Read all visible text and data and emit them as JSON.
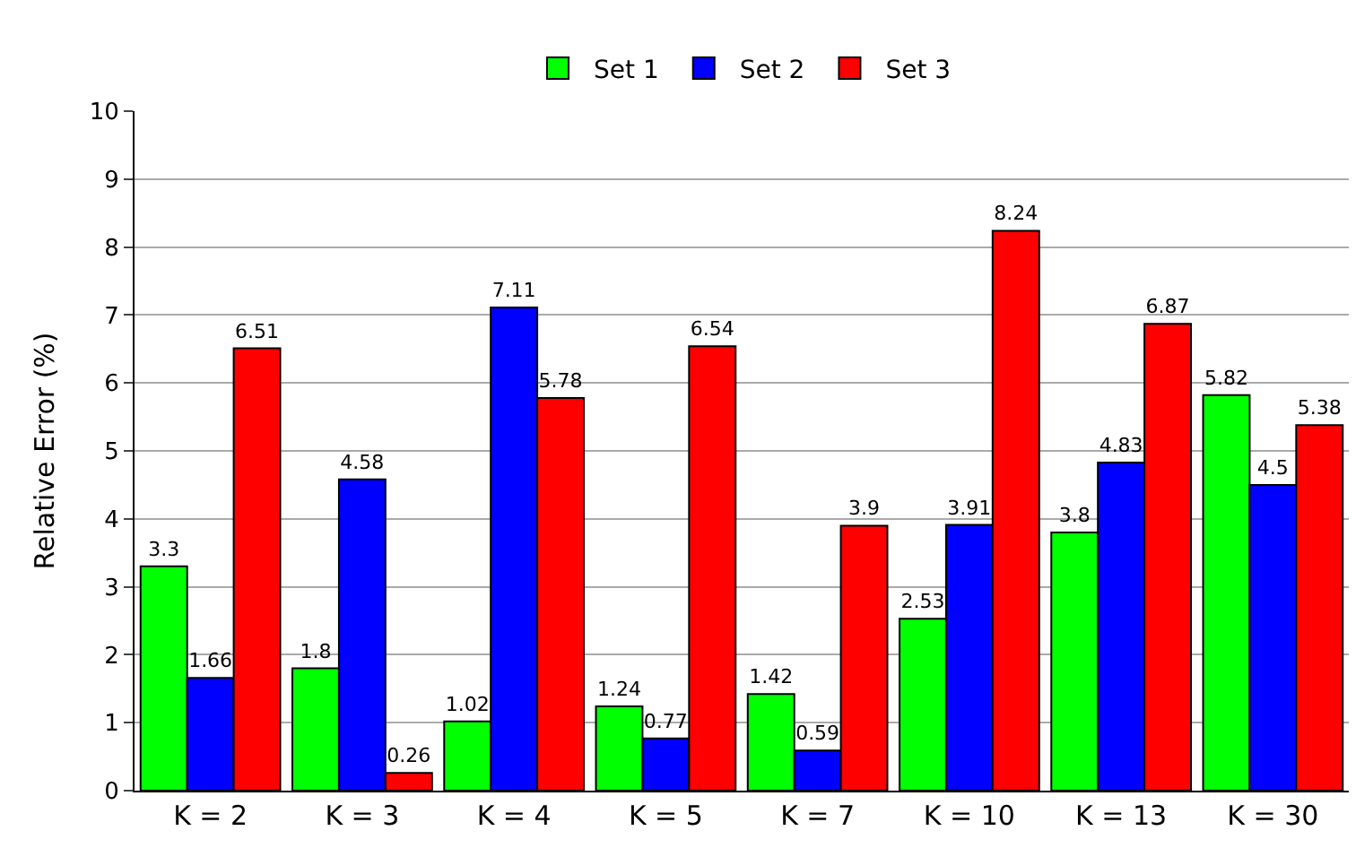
{
  "chart_data": {
    "type": "bar",
    "ylabel": "Relative Error (%)",
    "categories": [
      "K = 2",
      "K = 3",
      "K = 4",
      "K = 5",
      "K = 7",
      "K = 10",
      "K = 13",
      "K = 30"
    ],
    "series": [
      {
        "name": "Set 1",
        "color": "#00ff00",
        "values": [
          3.3,
          1.8,
          1.02,
          1.24,
          1.42,
          2.53,
          3.8,
          5.82
        ]
      },
      {
        "name": "Set 2",
        "color": "#0000ff",
        "values": [
          1.66,
          4.58,
          7.11,
          0.77,
          0.59,
          3.91,
          4.83,
          4.5
        ]
      },
      {
        "name": "Set 3",
        "color": "#ff0000",
        "values": [
          6.51,
          0.26,
          5.78,
          6.54,
          3.9,
          8.24,
          6.87,
          5.38
        ]
      }
    ],
    "ylim": [
      0,
      10
    ],
    "yticks": [
      0,
      1,
      2,
      3,
      4,
      5,
      6,
      7,
      8,
      9,
      10
    ],
    "grid": "y",
    "legend": "top",
    "data_labels": true
  }
}
